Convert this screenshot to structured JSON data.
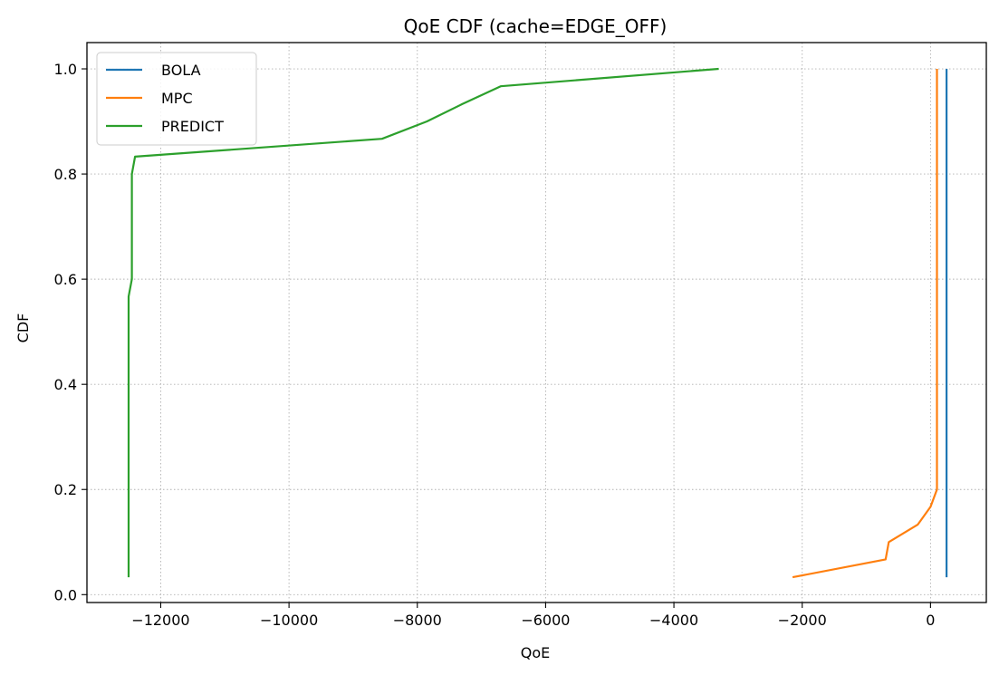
{
  "chart_data": {
    "type": "line",
    "title": "QoE CDF (cache=EDGE_OFF)",
    "xlabel": "QoE",
    "ylabel": "CDF",
    "xlim": [
      -13150,
      870
    ],
    "ylim": [
      -0.015,
      1.05
    ],
    "xticks": [
      -12000,
      -10000,
      -8000,
      -6000,
      -4000,
      -2000,
      0
    ],
    "xtick_labels": [
      "−12000",
      "−10000",
      "−8000",
      "−6000",
      "−4000",
      "−2000",
      "0"
    ],
    "yticks": [
      0.0,
      0.2,
      0.4,
      0.6,
      0.8,
      1.0
    ],
    "ytick_labels": [
      "0.0",
      "0.2",
      "0.4",
      "0.6",
      "0.8",
      "1.0"
    ],
    "grid": true,
    "legend_position": "upper-left",
    "series": [
      {
        "name": "BOLA",
        "color": "#1f77b4",
        "x": [
          250,
          250
        ],
        "y": [
          0.033,
          1.0
        ]
      },
      {
        "name": "MPC",
        "color": "#ff7f0e",
        "x": [
          -2150,
          -700,
          -650,
          -200,
          0,
          100,
          100
        ],
        "y": [
          0.033,
          0.067,
          0.1,
          0.133,
          0.167,
          0.2,
          1.0
        ]
      },
      {
        "name": "PREDICT",
        "color": "#2ca02c",
        "x": [
          -12500,
          -12500,
          -12450,
          -12450,
          -12450,
          -12400,
          -8550,
          -7850,
          -7300,
          -6700,
          -3300
        ],
        "y": [
          0.033,
          0.567,
          0.6,
          0.767,
          0.8,
          0.833,
          0.867,
          0.9,
          0.933,
          0.967,
          1.0
        ]
      }
    ]
  }
}
